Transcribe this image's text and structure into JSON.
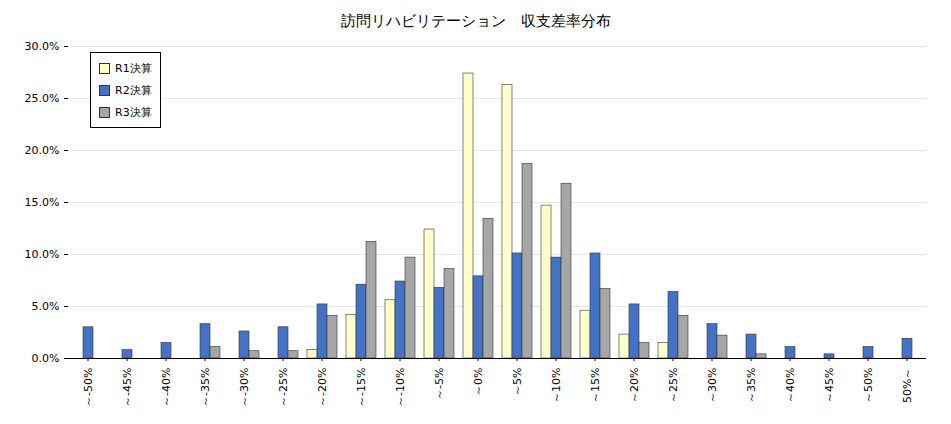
{
  "chart_data": {
    "type": "bar",
    "title": "訪問リハビリテーション　収支差率分布",
    "categories": [
      "～-50%",
      "～-45%",
      "～-40%",
      "～-35%",
      "～-30%",
      "～-25%",
      "～-20%",
      "～-15%",
      "～-10%",
      "～-5%",
      "～0%",
      "～5%",
      "～10%",
      "～15%",
      "～20%",
      "～25%",
      "～30%",
      "～35%",
      "～40%",
      "～45%",
      "～50%",
      "50%～"
    ],
    "series": [
      {
        "name": "R1決算",
        "color": "#ffffcc",
        "values": [
          0,
          0,
          0,
          0,
          0,
          0,
          0.8,
          4.2,
          5.6,
          12.4,
          27.4,
          26.3,
          14.7,
          4.6,
          2.3,
          1.5,
          0,
          0,
          0,
          0,
          0,
          0
        ]
      },
      {
        "name": "R2決算",
        "color": "#4472c4",
        "values": [
          3.0,
          0.8,
          1.5,
          3.3,
          2.6,
          3.0,
          5.2,
          7.1,
          7.4,
          6.8,
          7.9,
          10.1,
          9.7,
          10.1,
          5.2,
          6.4,
          3.3,
          2.3,
          1.1,
          0.4,
          1.1,
          1.9
        ]
      },
      {
        "name": "R3決算",
        "color": "#a6a6a6",
        "values": [
          0,
          0,
          0,
          1.1,
          0.7,
          0.7,
          4.1,
          11.2,
          9.7,
          8.6,
          13.4,
          18.7,
          16.8,
          6.7,
          1.5,
          4.1,
          2.2,
          0.4,
          0,
          0,
          0,
          0
        ]
      }
    ],
    "ylim": [
      0,
      30
    ],
    "yticks": [
      {
        "value": 0,
        "label": "0.0%"
      },
      {
        "value": 5,
        "label": "5.0%"
      },
      {
        "value": 10,
        "label": "10.0%"
      },
      {
        "value": 15,
        "label": "15.0%"
      },
      {
        "value": 20,
        "label": "20.0%"
      },
      {
        "value": 25,
        "label": "25.0%"
      },
      {
        "value": 30,
        "label": "30.0%"
      }
    ],
    "grid": true,
    "legend": "upper left"
  }
}
